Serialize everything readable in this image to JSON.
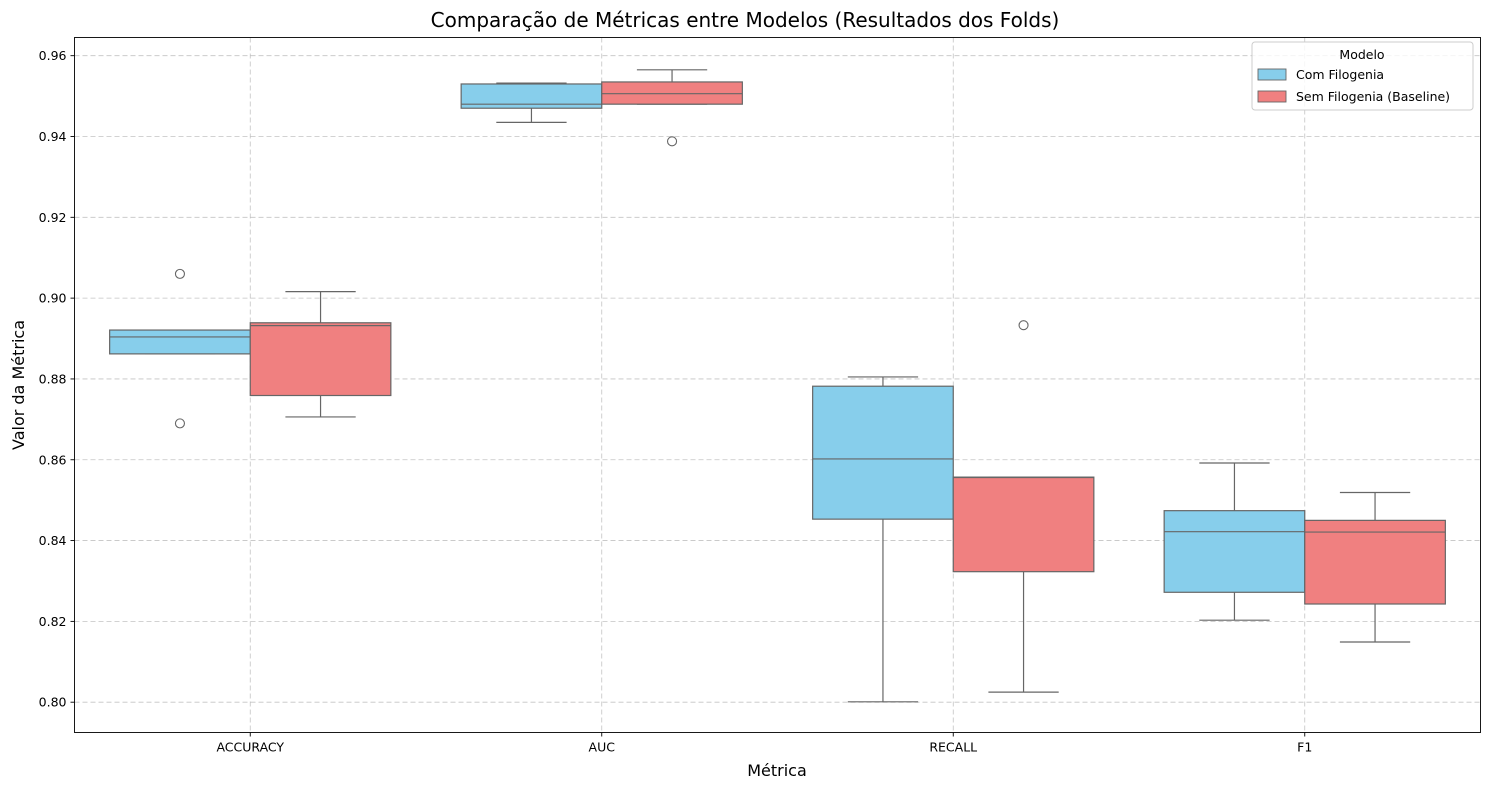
{
  "chart_data": {
    "type": "box",
    "title": "Comparação de Métricas entre Modelos (Resultados dos Folds)",
    "xlabel": "Métrica",
    "ylabel": "Valor da Métrica",
    "ylim": [
      0.7925,
      0.9645
    ],
    "yticks": [
      "0.80",
      "0.82",
      "0.84",
      "0.86",
      "0.88",
      "0.90",
      "0.92",
      "0.94",
      "0.96"
    ],
    "categories": [
      "ACCURACY",
      "AUC",
      "RECALL",
      "F1"
    ],
    "grid": true,
    "legend": {
      "title": "Modelo",
      "position": "top-right"
    },
    "series": [
      {
        "name": "Com Filogenia",
        "color": "#87CEEB",
        "boxes": [
          {
            "whislo": 0.8862,
            "q1": 0.8862,
            "med": 0.8904,
            "q3": 0.8921,
            "whishi": 0.8921,
            "fliers": [
              0.906,
              0.869
            ]
          },
          {
            "whislo": 0.9435,
            "q1": 0.947,
            "med": 0.948,
            "q3": 0.953,
            "whishi": 0.9532,
            "fliers": []
          },
          {
            "whislo": 0.8001,
            "q1": 0.8453,
            "med": 0.8602,
            "q3": 0.8782,
            "whishi": 0.8805,
            "fliers": []
          },
          {
            "whislo": 0.8203,
            "q1": 0.8272,
            "med": 0.8422,
            "q3": 0.8474,
            "whishi": 0.8592,
            "fliers": []
          }
        ]
      },
      {
        "name": "Sem Filogenia (Baseline)",
        "color": "#F08080",
        "boxes": [
          {
            "whislo": 0.8706,
            "q1": 0.8759,
            "med": 0.8932,
            "q3": 0.8939,
            "whishi": 0.9016,
            "fliers": []
          },
          {
            "whislo": 0.948,
            "q1": 0.948,
            "med": 0.9506,
            "q3": 0.9535,
            "whishi": 0.9565,
            "fliers": [
              0.9388
            ]
          },
          {
            "whislo": 0.8025,
            "q1": 0.8323,
            "med": 0.8556,
            "q3": 0.8557,
            "whishi": 0.8557,
            "fliers": [
              0.8933
            ]
          },
          {
            "whislo": 0.8149,
            "q1": 0.8243,
            "med": 0.8421,
            "q3": 0.845,
            "whishi": 0.8519,
            "fliers": []
          }
        ]
      }
    ]
  }
}
